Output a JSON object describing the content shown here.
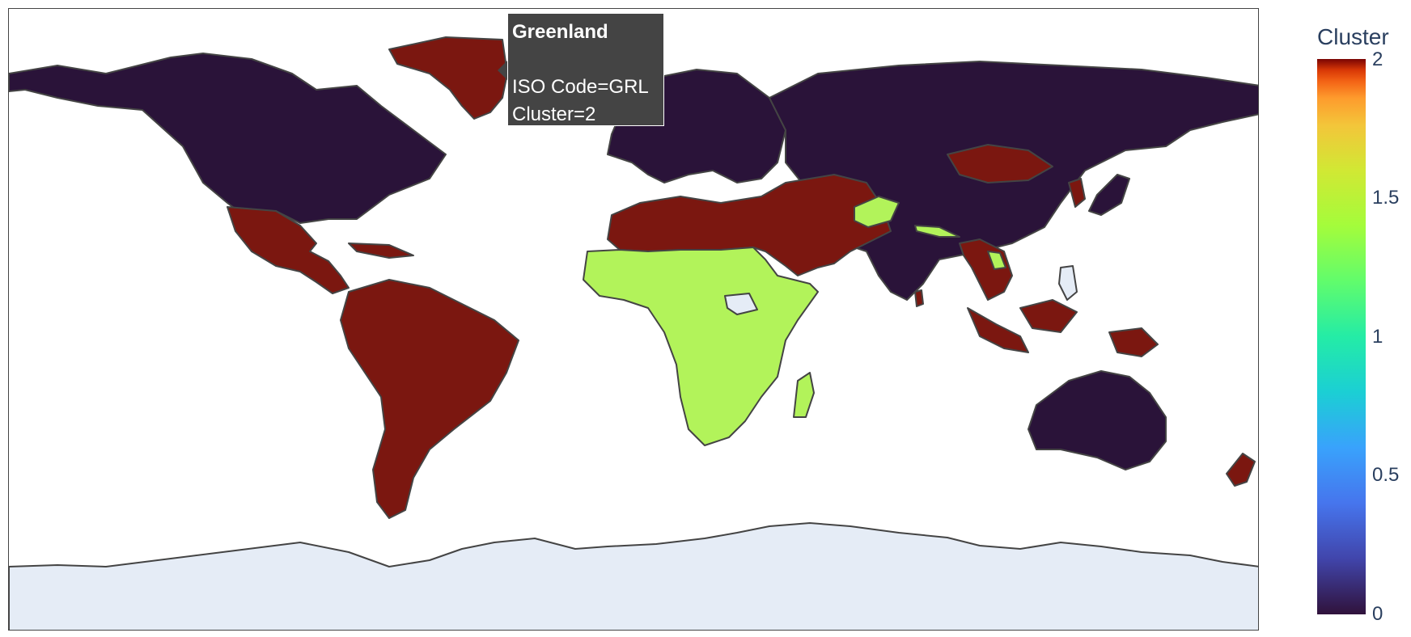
{
  "map": {
    "colors": {
      "cluster_0": "#2a1339",
      "cluster_1": "#b2f35a",
      "cluster_2": "#7b1710",
      "no_data": "#e5ecf6",
      "border": "#444444"
    }
  },
  "tooltip": {
    "title": "Greenland",
    "iso_line": "ISO Code=GRL",
    "cluster_line": "Cluster=2"
  },
  "colorbar": {
    "title": "Cluster",
    "ticks": [
      "2",
      "1.5",
      "1",
      "0.5",
      "0"
    ],
    "colorscale": "Turbo"
  }
}
